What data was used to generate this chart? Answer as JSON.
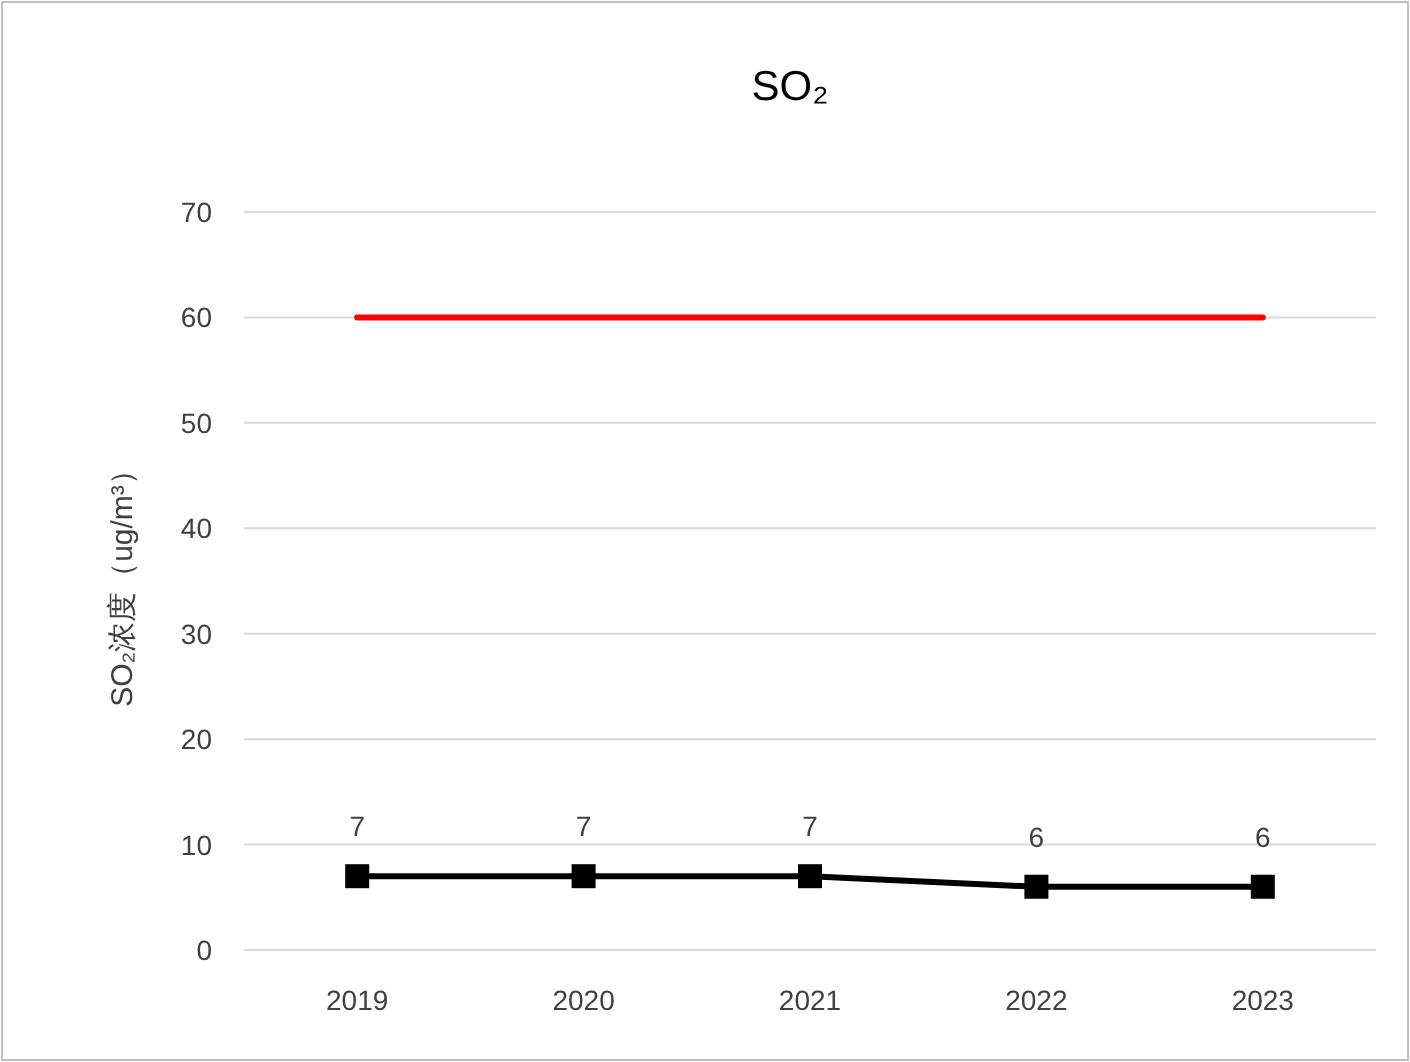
{
  "chart_data": {
    "type": "line",
    "title": "SO₂",
    "ylabel": "SO₂浓度（ug/m³）",
    "categories": [
      "2019",
      "2020",
      "2021",
      "2022",
      "2023"
    ],
    "series": [
      {
        "color": "#ff0000",
        "values": [
          60,
          60,
          60,
          60,
          60
        ],
        "marker": "none"
      },
      {
        "color": "#000000",
        "values": [
          7,
          7,
          7,
          6,
          6
        ],
        "marker": "square",
        "value_labels": [
          "7",
          "7",
          "7",
          "6",
          "6"
        ]
      }
    ],
    "ylim": [
      0,
      70
    ],
    "yticks": [
      0,
      10,
      20,
      30,
      40,
      50,
      60,
      70
    ],
    "grid": "y"
  }
}
